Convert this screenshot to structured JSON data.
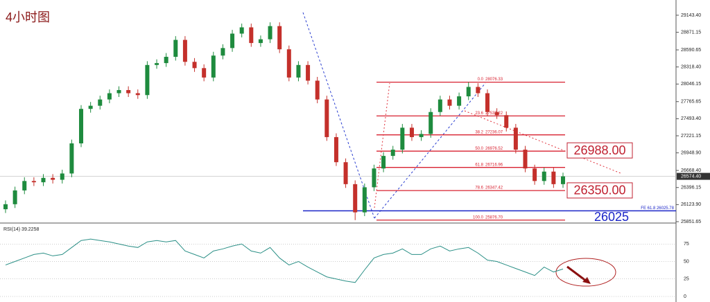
{
  "chart_data": [
    {
      "type": "candlestick",
      "title": "4小时图",
      "open": [
        26050,
        26130,
        26350,
        26500,
        26480,
        26550,
        26520,
        26620,
        27100,
        27650,
        27700,
        27800,
        27900,
        27950,
        27900,
        27870,
        28350,
        28380,
        28480,
        28750,
        28400,
        28300,
        28150,
        28500,
        28620,
        28850,
        28950,
        28700,
        28760,
        28970,
        28600,
        28150,
        28350,
        28100,
        27800,
        27200,
        26800,
        26450,
        26000,
        26400,
        26700,
        26900,
        27000,
        27350,
        27200,
        27250,
        27600,
        27800,
        27700,
        27850,
        28000,
        27900,
        27600,
        27550,
        27350,
        27000,
        26700,
        26500,
        26650,
        26450
      ],
      "high": [
        26190,
        26410,
        26560,
        26560,
        26610,
        26610,
        26680,
        27160,
        27710,
        27760,
        27860,
        27960,
        28010,
        28010,
        27960,
        28410,
        28440,
        28540,
        28810,
        28810,
        28460,
        28360,
        28560,
        28680,
        28910,
        29010,
        29010,
        28820,
        29030,
        29030,
        28660,
        28410,
        28410,
        28160,
        27860,
        27260,
        26860,
        26510,
        26460,
        26760,
        26960,
        27060,
        27410,
        27410,
        27310,
        27660,
        27860,
        27860,
        27910,
        28076.33,
        28060,
        27960,
        27660,
        27610,
        27410,
        27060,
        26760,
        26710,
        26710,
        26634
      ],
      "low": [
        25990,
        26070,
        26290,
        26420,
        26420,
        26460,
        26460,
        26560,
        27040,
        27590,
        27640,
        27740,
        27840,
        27840,
        27810,
        27810,
        28290,
        28320,
        28420,
        28340,
        28240,
        28090,
        28090,
        28440,
        28560,
        28790,
        28640,
        28640,
        28700,
        28540,
        28090,
        28090,
        28040,
        27740,
        27140,
        26740,
        26390,
        25876.7,
        25940,
        26340,
        26640,
        26840,
        26940,
        27140,
        27140,
        27190,
        27540,
        27640,
        27640,
        27790,
        27840,
        27540,
        27490,
        27290,
        26940,
        26640,
        26440,
        26440,
        26390,
        26390
      ],
      "close": [
        26130,
        26350,
        26500,
        26480,
        26550,
        26520,
        26620,
        27100,
        27650,
        27700,
        27800,
        27900,
        27950,
        27900,
        27870,
        28350,
        28380,
        28480,
        28750,
        28400,
        28300,
        28150,
        28500,
        28620,
        28850,
        28950,
        28700,
        28760,
        28970,
        28600,
        28150,
        28350,
        28100,
        27800,
        27200,
        26800,
        26450,
        26000,
        26400,
        26700,
        26900,
        27000,
        27350,
        27200,
        27250,
        27600,
        27800,
        27700,
        27850,
        28000,
        27900,
        27600,
        27550,
        27350,
        27000,
        26700,
        26500,
        26650,
        26450,
        26574.4
      ],
      "up_color": "#1e8b3e",
      "down_color": "#c4302b",
      "ylim": [
        25830,
        29386
      ],
      "yticks": [
        {
          "value": 29143.4,
          "label": "29143.40"
        },
        28871.15,
        28590.65,
        {
          "value": 28318.4,
          "label": "28318.40"
        },
        28046.15,
        27765.65,
        {
          "value": 27493.4,
          "label": "27493.40"
        },
        27221.15,
        {
          "value": 26948.9,
          "label": "26948.90"
        },
        {
          "value": 26668.4,
          "label": "26668.40"
        },
        26396.15,
        {
          "value": 26123.9,
          "label": "26123.90"
        },
        25851.65
      ],
      "current_price": {
        "value": 26574.4,
        "label": "26574.40"
      },
      "fib_levels": [
        {
          "ratio": "0.0",
          "price": 28076.33
        },
        {
          "ratio": "23.6",
          "price": 27537.22
        },
        {
          "ratio": "38.2",
          "price": 27236.07
        },
        {
          "ratio": "50.0",
          "price": 26976.52
        },
        {
          "ratio": "61.8",
          "price": 26716.96
        },
        {
          "ratio": "78.6",
          "price": 26347.42
        },
        {
          "ratio": "100.0",
          "price": {
            "value": 25876.7,
            "label": "25876.70"
          }
        }
      ],
      "fib_color": "#d8202f",
      "targets": [
        {
          "value": 26988,
          "label": "26988.00"
        },
        {
          "value": 26350,
          "label": "26350.00"
        }
      ],
      "support": {
        "value": 26025,
        "label": "26025",
        "note": "FE 61.8  26025.78",
        "color": "#1a24c8"
      }
    },
    {
      "type": "line",
      "title": "RSI(14) 39.2258",
      "color": "#2a8f86",
      "values": [
        45,
        50,
        55,
        60,
        62,
        58,
        60,
        70,
        80,
        82,
        80,
        78,
        75,
        72,
        70,
        78,
        80,
        78,
        80,
        65,
        60,
        55,
        65,
        68,
        72,
        75,
        65,
        62,
        70,
        55,
        45,
        50,
        42,
        35,
        28,
        25,
        22,
        20,
        38,
        55,
        60,
        62,
        68,
        60,
        60,
        68,
        72,
        65,
        68,
        70,
        62,
        52,
        50,
        45,
        40,
        35,
        30,
        42,
        35,
        39.2258
      ],
      "ylim": [
        0,
        100
      ],
      "yticks": [
        0,
        25,
        50,
        75
      ]
    }
  ]
}
